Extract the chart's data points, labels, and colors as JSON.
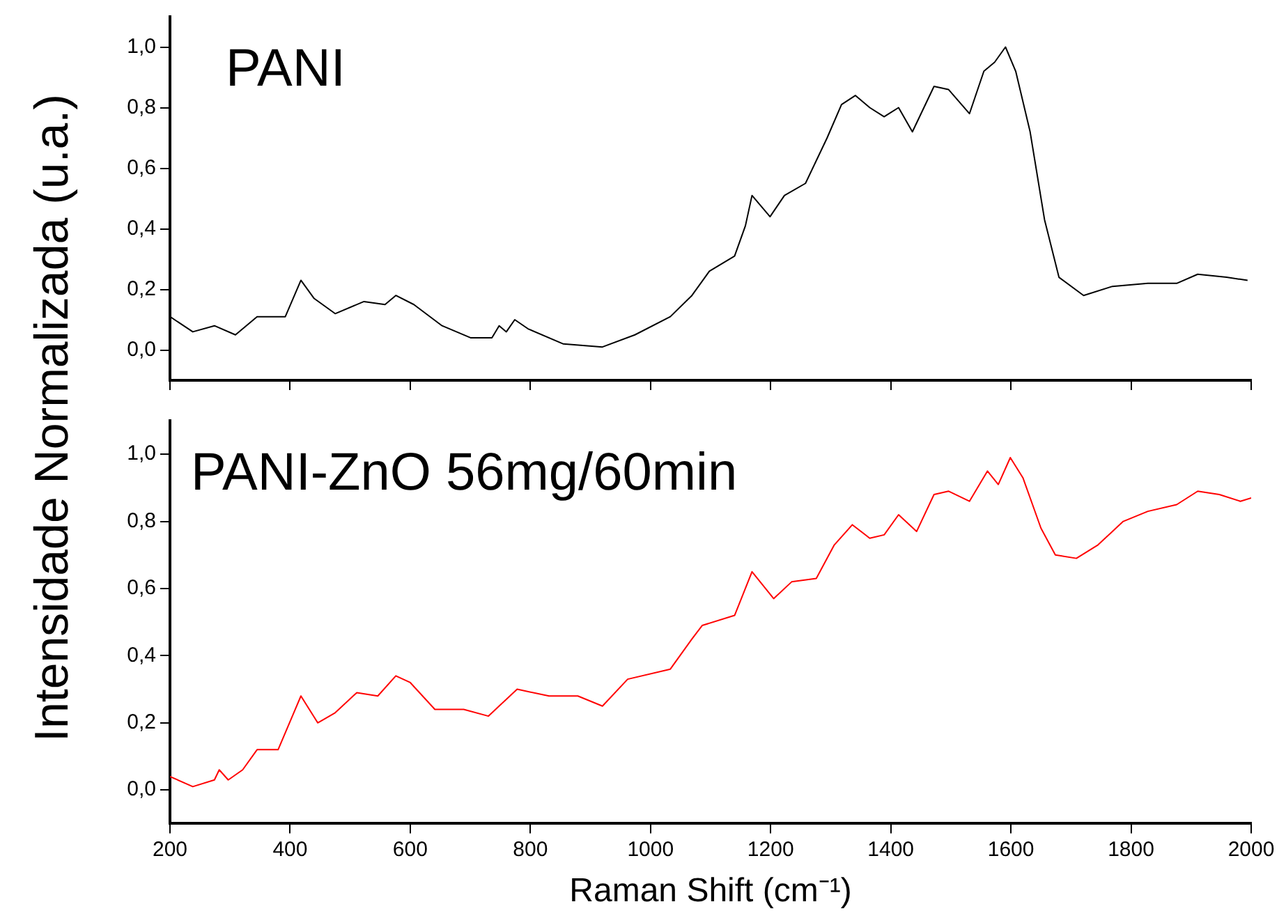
{
  "chart_data": [
    {
      "type": "line",
      "ylabel": "Intensidade Normalizada (u.a.)",
      "xlim": [
        200,
        2000
      ],
      "xticks": [
        200,
        400,
        600,
        800,
        1000,
        1200,
        1400,
        1600,
        1800,
        2000
      ],
      "ylim": [
        -0.1,
        1.1
      ],
      "yticks": [
        {
          "value": 0,
          "label": "0,0"
        },
        {
          "value": 0.2,
          "label": "0,2"
        },
        {
          "value": 0.4,
          "label": "0,4"
        },
        {
          "value": 0.6,
          "label": "0,6"
        },
        {
          "value": 0.8,
          "label": "0,8"
        },
        {
          "value": 1,
          "label": "1,0"
        }
      ],
      "tick_labels": "y",
      "grid": false,
      "legend": false,
      "marker": "none",
      "line_style": "solid",
      "series": [
        {
          "name": "PANI",
          "color": "#000000",
          "x": [
            200,
            238,
            274,
            309,
            345,
            392,
            418,
            440,
            475,
            523,
            558,
            576,
            606,
            653,
            701,
            736,
            748,
            760,
            774,
            796,
            855,
            920,
            974,
            1033,
            1069,
            1098,
            1140,
            1158,
            1169,
            1199,
            1223,
            1258,
            1294,
            1318,
            1341,
            1365,
            1389,
            1413,
            1436,
            1472,
            1496,
            1531,
            1555,
            1573,
            1591,
            1608,
            1632,
            1656,
            1680,
            1721,
            1769,
            1828,
            1876,
            1911,
            1959,
            1994
          ],
          "values": [
            0.11,
            0.06,
            0.08,
            0.05,
            0.11,
            0.11,
            0.23,
            0.17,
            0.12,
            0.16,
            0.15,
            0.18,
            0.15,
            0.08,
            0.04,
            0.04,
            0.08,
            0.06,
            0.1,
            0.07,
            0.02,
            0.01,
            0.05,
            0.11,
            0.18,
            0.26,
            0.31,
            0.41,
            0.51,
            0.44,
            0.51,
            0.55,
            0.7,
            0.81,
            0.84,
            0.8,
            0.77,
            0.8,
            0.72,
            0.87,
            0.86,
            0.78,
            0.92,
            0.95,
            1.0,
            0.92,
            0.72,
            0.43,
            0.24,
            0.18,
            0.21,
            0.22,
            0.22,
            0.25,
            0.24,
            0.23
          ]
        }
      ]
    },
    {
      "type": "line",
      "xlabel": "Raman Shift (cm⁻¹)",
      "xlim": [
        200,
        2000
      ],
      "xticks": [
        200,
        400,
        600,
        800,
        1000,
        1200,
        1400,
        1600,
        1800,
        2000
      ],
      "ylim": [
        -0.1,
        1.1
      ],
      "yticks": [
        {
          "value": 0,
          "label": "0,0"
        },
        {
          "value": 0.2,
          "label": "0,2"
        },
        {
          "value": 0.4,
          "label": "0,4"
        },
        {
          "value": 0.6,
          "label": "0,6"
        },
        {
          "value": 0.8,
          "label": "0,8"
        },
        {
          "value": 1,
          "label": "1,0"
        }
      ],
      "grid": false,
      "legend": false,
      "marker": "none",
      "line_style": "solid",
      "series": [
        {
          "name": "PANI-ZnO 56mg/60min",
          "color": "#ff0000",
          "x": [
            200,
            238,
            274,
            282,
            297,
            321,
            345,
            380,
            418,
            446,
            475,
            511,
            546,
            576,
            600,
            641,
            689,
            730,
            778,
            831,
            879,
            920,
            962,
            1033,
            1069,
            1086,
            1140,
            1169,
            1205,
            1235,
            1276,
            1306,
            1336,
            1365,
            1389,
            1413,
            1443,
            1472,
            1496,
            1531,
            1561,
            1579,
            1599,
            1620,
            1650,
            1674,
            1709,
            1745,
            1787,
            1828,
            1876,
            1911,
            1947,
            1982,
            2000
          ],
          "values": [
            0.04,
            0.01,
            0.03,
            0.06,
            0.03,
            0.06,
            0.12,
            0.12,
            0.28,
            0.2,
            0.23,
            0.29,
            0.28,
            0.34,
            0.32,
            0.24,
            0.24,
            0.22,
            0.3,
            0.28,
            0.28,
            0.25,
            0.33,
            0.36,
            0.45,
            0.49,
            0.52,
            0.65,
            0.57,
            0.62,
            0.63,
            0.73,
            0.79,
            0.75,
            0.76,
            0.82,
            0.77,
            0.88,
            0.89,
            0.86,
            0.95,
            0.91,
            0.99,
            0.93,
            0.78,
            0.7,
            0.69,
            0.73,
            0.8,
            0.83,
            0.85,
            0.89,
            0.88,
            0.86,
            0.87
          ]
        }
      ]
    }
  ]
}
